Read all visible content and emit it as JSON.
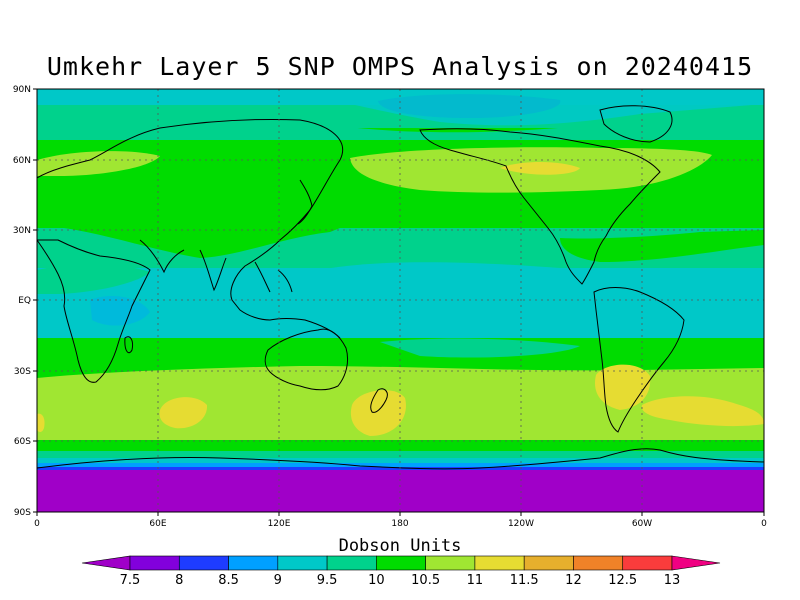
{
  "title": "Umkehr Layer 5 SNP OMPS Analysis on 20240415",
  "colorbar": {
    "title": "Dobson Units",
    "labels": [
      "7.5",
      "8",
      "8.5",
      "9",
      "9.5",
      "10",
      "10.5",
      "11",
      "11.5",
      "12",
      "12.5",
      "13"
    ],
    "colors": [
      "#a000c8",
      "#8200dc",
      "#1e3cff",
      "#00a0ff",
      "#00c8c8",
      "#00d28c",
      "#00dc00",
      "#a0e632",
      "#e6dc32",
      "#e6af2d",
      "#f08228",
      "#fa3c3c",
      "#f00082"
    ]
  },
  "axes": {
    "lat_labels": [
      "90N",
      "60N",
      "30N",
      "EQ",
      "30S",
      "60S",
      "90S"
    ],
    "lon_labels": [
      "0",
      "60E",
      "120E",
      "180",
      "120W",
      "60W",
      "0"
    ]
  },
  "chart_data": {
    "type": "heatmap",
    "title": "Umkehr Layer 5 SNP OMPS Analysis on 20240415",
    "xlabel": "",
    "ylabel": "",
    "x_range": [
      0,
      360
    ],
    "y_range": [
      -90,
      90
    ],
    "colorbar_label": "Dobson Units",
    "levels": [
      7.5,
      8,
      8.5,
      9,
      9.5,
      10,
      10.5,
      11,
      11.5,
      12,
      12.5,
      13
    ],
    "grid": true,
    "zonal_bands": [
      {
        "lat": [
          80,
          90
        ],
        "value": 9.5
      },
      {
        "lat": [
          70,
          80
        ],
        "value": 9.8
      },
      {
        "lat": [
          45,
          70
        ],
        "value": 10.6
      },
      {
        "lat": [
          25,
          45
        ],
        "value": 10.2
      },
      {
        "lat": [
          5,
          25
        ],
        "value": 9.7
      },
      {
        "lat": [
          -15,
          5
        ],
        "value": 9.6
      },
      {
        "lat": [
          -25,
          -15
        ],
        "value": 10.2
      },
      {
        "lat": [
          -60,
          -25
        ],
        "value": 11.0
      },
      {
        "lat": [
          -65,
          -60
        ],
        "value": 10.5
      },
      {
        "lat": [
          -70,
          -65
        ],
        "value": 9.5
      },
      {
        "lat": [
          -90,
          -70
        ],
        "value": 7.4
      }
    ]
  }
}
